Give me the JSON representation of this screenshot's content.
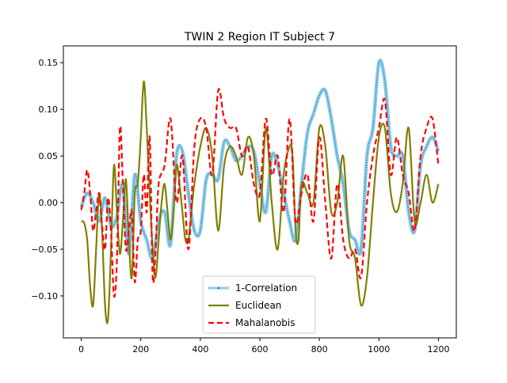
{
  "chart_data": {
    "type": "line",
    "title": "TWIN 2 Region IT Subject 7",
    "xlabel": "",
    "ylabel": "",
    "xlim": [
      -60,
      1260
    ],
    "ylim": [
      -0.145,
      0.168
    ],
    "xticks": [
      0,
      200,
      400,
      600,
      800,
      1000,
      1200
    ],
    "yticks": [
      -0.1,
      -0.05,
      0.0,
      0.05,
      0.1,
      0.15
    ],
    "xtick_labels": [
      "0",
      "200",
      "400",
      "600",
      "800",
      "1000",
      "1200"
    ],
    "ytick_labels": [
      "−0.10",
      "−0.05",
      "0.00",
      "0.05",
      "0.10",
      "0.15"
    ],
    "grid": false,
    "legend_position": "lower-center",
    "series": [
      {
        "name": "1-Correlation",
        "color": "#87ceeb",
        "marker_color": "#1f1f6e",
        "style": "solid-thick-with-markers",
        "points": [
          [
            0,
            -0.005
          ],
          [
            20,
            0.01
          ],
          [
            40,
            0.0
          ],
          [
            60,
            -0.02
          ],
          [
            80,
            0.005
          ],
          [
            100,
            -0.025
          ],
          [
            120,
            -0.015
          ],
          [
            140,
            0.02
          ],
          [
            160,
            -0.055
          ],
          [
            180,
            0.03
          ],
          [
            200,
            -0.02
          ],
          [
            220,
            -0.04
          ],
          [
            240,
            -0.06
          ],
          [
            260,
            -0.02
          ],
          [
            280,
            -0.01
          ],
          [
            300,
            -0.045
          ],
          [
            320,
            0.05
          ],
          [
            340,
            0.055
          ],
          [
            360,
            0.01
          ],
          [
            380,
            -0.03
          ],
          [
            400,
            -0.03
          ],
          [
            420,
            0.025
          ],
          [
            440,
            0.03
          ],
          [
            460,
            0.025
          ],
          [
            480,
            0.065
          ],
          [
            500,
            0.06
          ],
          [
            520,
            0.045
          ],
          [
            540,
            0.05
          ],
          [
            560,
            0.06
          ],
          [
            580,
            0.055
          ],
          [
            600,
            0.02
          ],
          [
            620,
            -0.01
          ],
          [
            640,
            0.05
          ],
          [
            660,
            0.04
          ],
          [
            680,
            0.01
          ],
          [
            700,
            -0.02
          ],
          [
            720,
            -0.04
          ],
          [
            740,
            0.02
          ],
          [
            760,
            0.075
          ],
          [
            780,
            0.095
          ],
          [
            800,
            0.115
          ],
          [
            820,
            0.12
          ],
          [
            840,
            0.09
          ],
          [
            860,
            0.05
          ],
          [
            880,
            0.02
          ],
          [
            900,
            -0.03
          ],
          [
            920,
            -0.04
          ],
          [
            940,
            -0.05
          ],
          [
            960,
            0.05
          ],
          [
            980,
            0.08
          ],
          [
            1000,
            0.15
          ],
          [
            1020,
            0.13
          ],
          [
            1040,
            0.06
          ],
          [
            1060,
            0.05
          ],
          [
            1080,
            0.05
          ],
          [
            1100,
            -0.01
          ],
          [
            1120,
            -0.03
          ],
          [
            1140,
            0.04
          ],
          [
            1160,
            0.06
          ],
          [
            1180,
            0.07
          ],
          [
            1200,
            0.055
          ]
        ]
      },
      {
        "name": "Euclidean",
        "color": "#808000",
        "style": "solid",
        "points": [
          [
            0,
            -0.02
          ],
          [
            10,
            -0.022
          ],
          [
            20,
            -0.04
          ],
          [
            30,
            -0.09
          ],
          [
            40,
            -0.11
          ],
          [
            50,
            -0.05
          ],
          [
            60,
            0.01
          ],
          [
            70,
            -0.03
          ],
          [
            80,
            -0.11
          ],
          [
            90,
            -0.125
          ],
          [
            100,
            -0.05
          ],
          [
            110,
            0.04
          ],
          [
            120,
            -0.01
          ],
          [
            130,
            -0.055
          ],
          [
            140,
            -0.02
          ],
          [
            150,
            0.025
          ],
          [
            160,
            -0.04
          ],
          [
            170,
            -0.08
          ],
          [
            180,
            0.01
          ],
          [
            190,
            0.02
          ],
          [
            200,
            0.07
          ],
          [
            210,
            0.13
          ],
          [
            220,
            0.08
          ],
          [
            230,
            0.01
          ],
          [
            240,
            -0.05
          ],
          [
            250,
            -0.08
          ],
          [
            260,
            -0.04
          ],
          [
            270,
            0.0
          ],
          [
            280,
            0.02
          ],
          [
            290,
            -0.01
          ],
          [
            300,
            -0.04
          ],
          [
            310,
            -0.01
          ],
          [
            320,
            0.04
          ],
          [
            330,
            0.02
          ],
          [
            340,
            -0.01
          ],
          [
            350,
            -0.04
          ],
          [
            360,
            -0.04
          ],
          [
            370,
            -0.01
          ],
          [
            380,
            0.02
          ],
          [
            400,
            0.06
          ],
          [
            420,
            0.08
          ],
          [
            440,
            0.05
          ],
          [
            460,
            -0.03
          ],
          [
            480,
            0.04
          ],
          [
            500,
            0.06
          ],
          [
            520,
            0.05
          ],
          [
            540,
            0.03
          ],
          [
            560,
            0.07
          ],
          [
            580,
            0.05
          ],
          [
            600,
            -0.02
          ],
          [
            620,
            0.08
          ],
          [
            640,
            0.0
          ],
          [
            660,
            -0.05
          ],
          [
            680,
            0.03
          ],
          [
            700,
            0.06
          ],
          [
            710,
            0.05
          ],
          [
            720,
            -0.03
          ],
          [
            730,
            -0.04
          ],
          [
            740,
            0.02
          ],
          [
            760,
            0.01
          ],
          [
            780,
            0.0
          ],
          [
            800,
            0.08
          ],
          [
            820,
            0.06
          ],
          [
            840,
            -0.01
          ],
          [
            860,
            0.0
          ],
          [
            880,
            0.05
          ],
          [
            900,
            -0.04
          ],
          [
            920,
            -0.06
          ],
          [
            940,
            -0.11
          ],
          [
            960,
            -0.08
          ],
          [
            980,
            0.0
          ],
          [
            1000,
            0.07
          ],
          [
            1020,
            0.08
          ],
          [
            1040,
            0.01
          ],
          [
            1060,
            -0.01
          ],
          [
            1080,
            0.02
          ],
          [
            1100,
            0.08
          ],
          [
            1120,
            -0.02
          ],
          [
            1140,
            0.0
          ],
          [
            1160,
            0.03
          ],
          [
            1180,
            0.0
          ],
          [
            1200,
            0.02
          ]
        ]
      },
      {
        "name": "Mahalanobis",
        "color": "#ff0000",
        "style": "dashed",
        "points": [
          [
            0,
            -0.008
          ],
          [
            10,
            0.01
          ],
          [
            20,
            0.035
          ],
          [
            30,
            0.01
          ],
          [
            40,
            -0.03
          ],
          [
            50,
            -0.01
          ],
          [
            60,
            0.01
          ],
          [
            70,
            -0.025
          ],
          [
            80,
            -0.05
          ],
          [
            90,
            0.005
          ],
          [
            100,
            -0.03
          ],
          [
            110,
            -0.1
          ],
          [
            120,
            -0.06
          ],
          [
            130,
            0.08
          ],
          [
            140,
            0.02
          ],
          [
            150,
            -0.05
          ],
          [
            160,
            -0.03
          ],
          [
            170,
            -0.01
          ],
          [
            180,
            -0.085
          ],
          [
            190,
            -0.04
          ],
          [
            200,
            -0.03
          ],
          [
            210,
            0.03
          ],
          [
            220,
            -0.01
          ],
          [
            230,
            0.07
          ],
          [
            240,
            -0.08
          ],
          [
            250,
            -0.05
          ],
          [
            260,
            0.02
          ],
          [
            280,
            0.04
          ],
          [
            300,
            0.09
          ],
          [
            320,
            0.0
          ],
          [
            340,
            0.05
          ],
          [
            360,
            -0.05
          ],
          [
            380,
            0.06
          ],
          [
            400,
            0.09
          ],
          [
            420,
            0.08
          ],
          [
            440,
            0.03
          ],
          [
            460,
            0.12
          ],
          [
            480,
            0.09
          ],
          [
            500,
            0.08
          ],
          [
            520,
            0.08
          ],
          [
            540,
            0.05
          ],
          [
            560,
            0.06
          ],
          [
            580,
            0.02
          ],
          [
            600,
            0.01
          ],
          [
            620,
            0.09
          ],
          [
            640,
            0.03
          ],
          [
            660,
            0.05
          ],
          [
            680,
            -0.01
          ],
          [
            700,
            0.09
          ],
          [
            720,
            -0.02
          ],
          [
            740,
            0.01
          ],
          [
            760,
            0.03
          ],
          [
            780,
            -0.02
          ],
          [
            800,
            0.07
          ],
          [
            820,
            0.0
          ],
          [
            840,
            -0.06
          ],
          [
            860,
            0.02
          ],
          [
            880,
            -0.04
          ],
          [
            900,
            -0.06
          ],
          [
            920,
            -0.05
          ],
          [
            940,
            -0.08
          ],
          [
            960,
            0.0
          ],
          [
            980,
            0.05
          ],
          [
            1000,
            0.08
          ],
          [
            1020,
            0.11
          ],
          [
            1040,
            0.03
          ],
          [
            1060,
            0.07
          ],
          [
            1080,
            0.03
          ],
          [
            1100,
            0.01
          ],
          [
            1120,
            -0.03
          ],
          [
            1140,
            0.05
          ],
          [
            1160,
            0.08
          ],
          [
            1180,
            0.09
          ],
          [
            1200,
            0.04
          ]
        ]
      }
    ]
  }
}
